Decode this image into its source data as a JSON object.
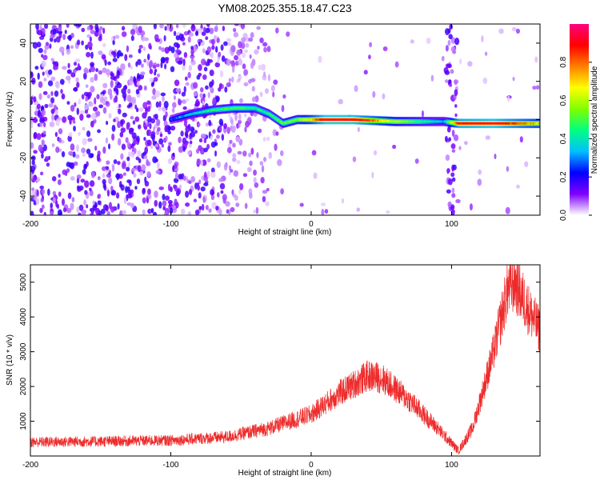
{
  "title": "YM08.2025.355.18.47.C23",
  "chart_data": [
    {
      "type": "heatmap",
      "name": "spectrogram",
      "xlabel": "Height of straight line (km)",
      "ylabel": "Frequency (Hz)",
      "xlim": [
        -200,
        163
      ],
      "ylim": [
        -50,
        50
      ],
      "xticks": [
        -200,
        -100,
        0,
        100
      ],
      "yticks": [
        -40,
        -20,
        0,
        20,
        40
      ],
      "colorbar": {
        "label": "Normalized spectral amplitude",
        "range": [
          0,
          1
        ],
        "ticks": [
          0.0,
          0.2,
          0.4,
          0.6,
          0.8
        ],
        "colors": [
          "#ffffff",
          "#8000ff",
          "#0000ff",
          "#00c0ff",
          "#00ff80",
          "#80ff00",
          "#ffff00",
          "#ff8000",
          "#ff0000",
          "#ff0080"
        ]
      },
      "ridge": [
        {
          "x": -100,
          "y": 0,
          "a": 0.25
        },
        {
          "x": -85,
          "y": 3,
          "a": 0.35
        },
        {
          "x": -70,
          "y": 5,
          "a": 0.45
        },
        {
          "x": -55,
          "y": 6,
          "a": 0.5
        },
        {
          "x": -40,
          "y": 6,
          "a": 0.45
        },
        {
          "x": -30,
          "y": 3,
          "a": 0.45
        },
        {
          "x": -20,
          "y": -2,
          "a": 0.5
        },
        {
          "x": -10,
          "y": 0,
          "a": 0.55
        },
        {
          "x": 0,
          "y": 0,
          "a": 0.7
        },
        {
          "x": 10,
          "y": 0,
          "a": 0.95
        },
        {
          "x": 30,
          "y": 0,
          "a": 0.95
        },
        {
          "x": 60,
          "y": -1,
          "a": 0.6
        },
        {
          "x": 95,
          "y": -1,
          "a": 0.35
        },
        {
          "x": 105,
          "y": -2,
          "a": 0.9
        },
        {
          "x": 130,
          "y": -2,
          "a": 0.95
        },
        {
          "x": 163,
          "y": -2,
          "a": 0.7
        }
      ],
      "vertical_band": {
        "x": 100,
        "width": 8
      }
    },
    {
      "type": "line",
      "name": "snr",
      "xlabel": "Height of straight line (km)",
      "ylabel": "SNR (10 * v/v)",
      "xlim": [
        -200,
        163
      ],
      "ylim": [
        0,
        5500
      ],
      "xticks": [
        -200,
        -100,
        0,
        100
      ],
      "yticks": [
        1000,
        2000,
        3000,
        4000,
        5000
      ],
      "color": "#ee2b2b",
      "envelope": [
        {
          "x": -200,
          "y": 400
        },
        {
          "x": -150,
          "y": 420
        },
        {
          "x": -100,
          "y": 450
        },
        {
          "x": -60,
          "y": 550
        },
        {
          "x": -30,
          "y": 800
        },
        {
          "x": 0,
          "y": 1200
        },
        {
          "x": 20,
          "y": 1800
        },
        {
          "x": 40,
          "y": 2300
        },
        {
          "x": 50,
          "y": 2250
        },
        {
          "x": 70,
          "y": 1600
        },
        {
          "x": 90,
          "y": 800
        },
        {
          "x": 105,
          "y": 150
        },
        {
          "x": 115,
          "y": 800
        },
        {
          "x": 130,
          "y": 3000
        },
        {
          "x": 140,
          "y": 4800
        },
        {
          "x": 145,
          "y": 5000
        },
        {
          "x": 155,
          "y": 4200
        },
        {
          "x": 163,
          "y": 3600
        }
      ]
    }
  ]
}
